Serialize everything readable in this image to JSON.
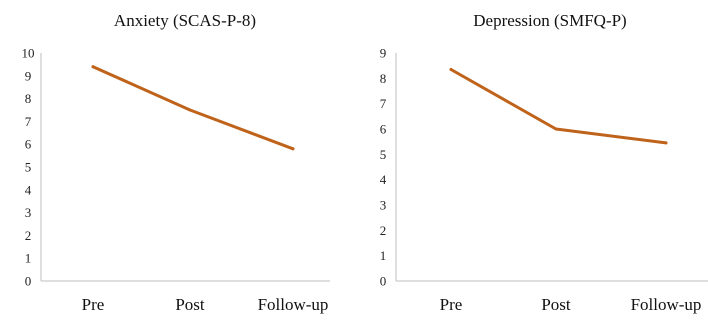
{
  "colors": {
    "line": "#C0631A",
    "axis": "#BFBFBF"
  },
  "chart_data": [
    {
      "type": "line",
      "title": "Anxiety (SCAS-P-8)",
      "categories": [
        "Pre",
        "Post",
        "Follow-up"
      ],
      "series": [
        {
          "values": [
            9.4,
            7.5,
            5.8
          ]
        }
      ],
      "ylim": [
        0,
        10
      ],
      "yticks": [
        "0",
        "1",
        "2",
        "3",
        "4",
        "5",
        "6",
        "7",
        "8",
        "9",
        "10"
      ],
      "grid": false,
      "legend": "none"
    },
    {
      "type": "line",
      "title": "Depression (SMFQ-P)",
      "categories": [
        "Pre",
        "Post",
        "Follow-up"
      ],
      "series": [
        {
          "values": [
            8.35,
            6.0,
            5.45
          ]
        }
      ],
      "ylim": [
        0,
        9
      ],
      "yticks": [
        "0",
        "1",
        "2",
        "3",
        "4",
        "5",
        "6",
        "7",
        "8",
        "9"
      ],
      "grid": false,
      "legend": "none"
    }
  ]
}
